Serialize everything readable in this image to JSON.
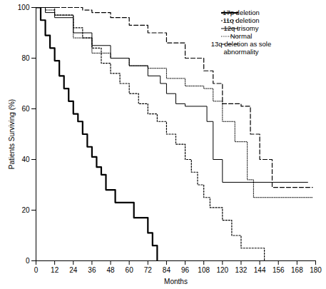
{
  "chart_data": {
    "type": "line",
    "xlabel": "Months",
    "ylabel": "Patients Surviving (%)",
    "xlim": [
      0,
      180
    ],
    "ylim": [
      0,
      100
    ],
    "xticks": [
      0,
      12,
      24,
      36,
      48,
      60,
      72,
      84,
      96,
      108,
      120,
      132,
      144,
      156,
      168,
      180
    ],
    "yticks": [
      0,
      20,
      40,
      60,
      80,
      100
    ],
    "legend": "top-right",
    "series": [
      {
        "name": "17p deletion",
        "color": "#000000",
        "line_style": "thick",
        "x": [
          0,
          3,
          6,
          9,
          12,
          15,
          18,
          21,
          24,
          27,
          30,
          33,
          36,
          39,
          42,
          45,
          51,
          63,
          72,
          75,
          78
        ],
        "values": [
          100,
          95,
          89,
          84,
          79,
          73,
          68,
          63,
          58,
          55,
          50,
          45,
          41,
          37,
          34,
          28,
          23,
          17,
          11,
          6,
          0
        ]
      },
      {
        "name": "11q deletion",
        "color": "#000000",
        "line_style": "dotted",
        "x": [
          0,
          12,
          24,
          30,
          36,
          42,
          48,
          54,
          60,
          66,
          72,
          78,
          84,
          90,
          96,
          100,
          104,
          108,
          112,
          120,
          126,
          132,
          147
        ],
        "values": [
          100,
          97,
          92,
          88,
          84,
          78,
          74,
          70,
          66,
          62,
          58,
          55,
          50,
          46,
          40,
          35,
          30,
          25,
          21,
          16,
          10,
          5,
          0
        ]
      },
      {
        "name": "12q trisomy",
        "color": "#000000",
        "line_style": "solid",
        "x": [
          0,
          6,
          12,
          24,
          36,
          48,
          60,
          72,
          80,
          84,
          90,
          96,
          110,
          114,
          120,
          175
        ],
        "values": [
          100,
          98,
          96,
          90,
          85,
          80,
          77,
          73,
          70,
          66,
          62,
          61,
          55,
          40,
          31,
          31
        ]
      },
      {
        "name": "Normal",
        "color": "#000000",
        "line_style": "fine-dotted",
        "x": [
          0,
          6,
          12,
          24,
          36,
          48,
          60,
          72,
          84,
          96,
          108,
          114,
          120,
          128,
          136,
          140,
          178
        ],
        "values": [
          100,
          99,
          97,
          88,
          82,
          80,
          77,
          76,
          72,
          69,
          68,
          63,
          55,
          47,
          32,
          25,
          25
        ]
      },
      {
        "name": "13q deletion as sole abnormality",
        "color": "#000000",
        "line_style": "dashed",
        "x": [
          0,
          30,
          36,
          48,
          60,
          72,
          84,
          96,
          108,
          114,
          120,
          132,
          138,
          144,
          152,
          178
        ],
        "values": [
          100,
          99,
          98,
          96,
          93,
          90,
          86,
          80,
          75,
          70,
          62,
          61,
          50,
          40,
          29,
          29
        ]
      }
    ]
  }
}
